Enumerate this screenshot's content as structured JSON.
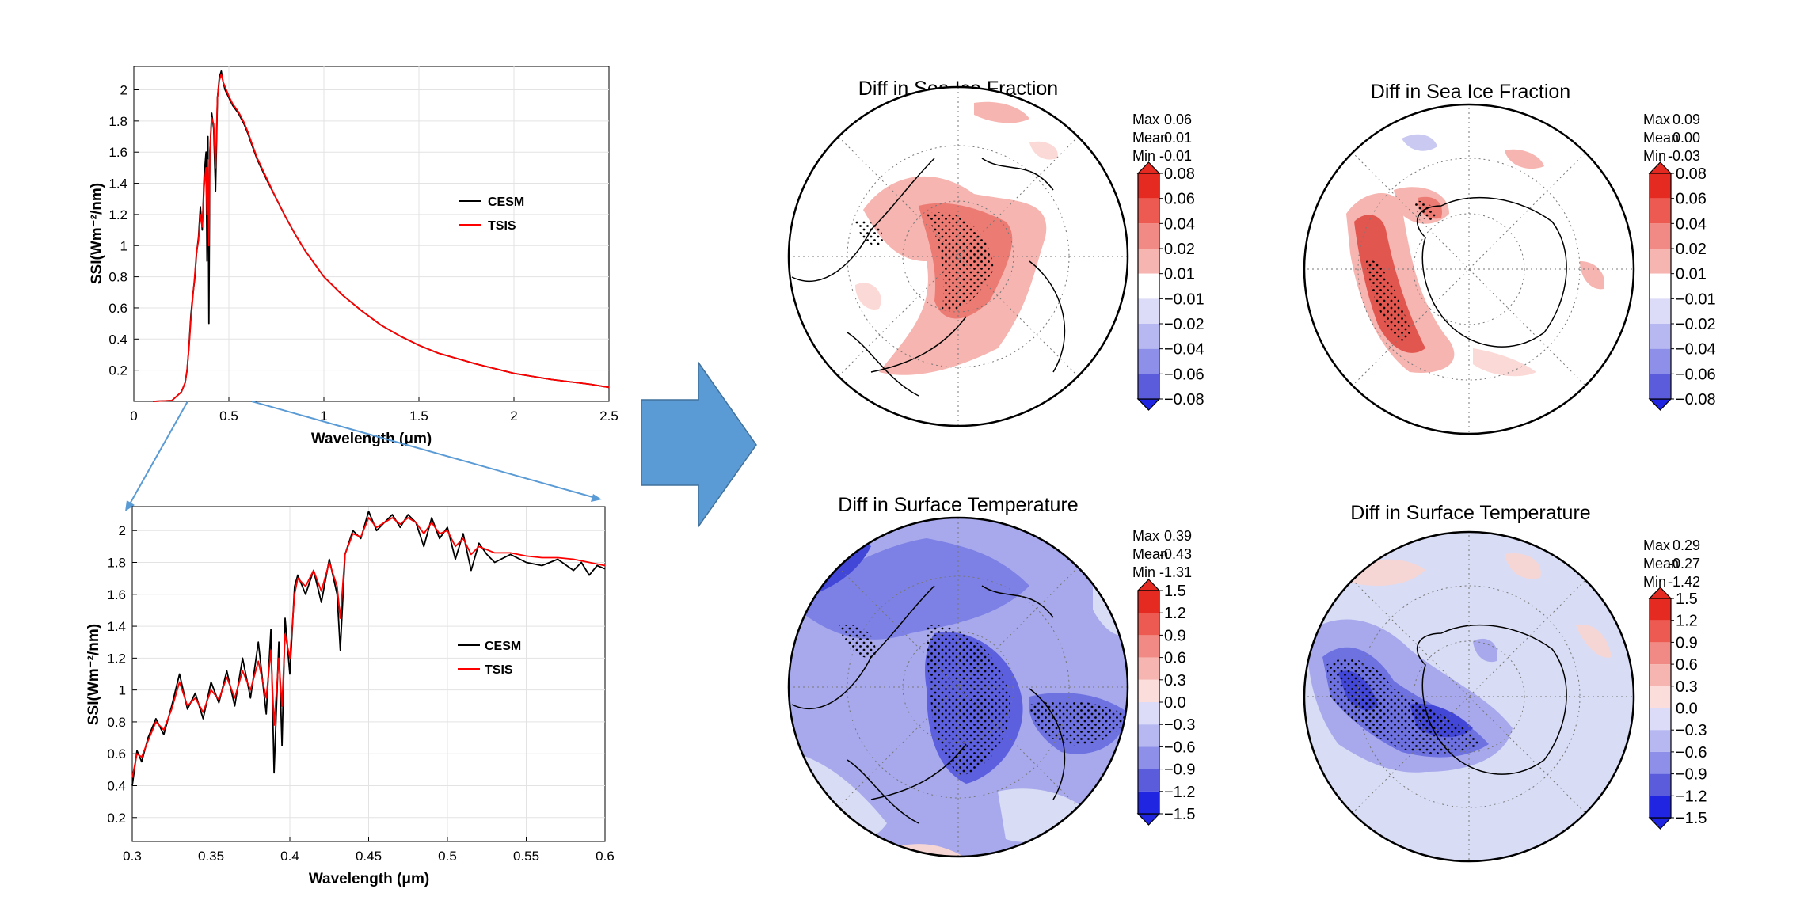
{
  "colors": {
    "cesm": "#000000",
    "tsis": "#ff0000",
    "arrow": "#5b9bd5",
    "zoom_lines": "#5b9bd5"
  },
  "chart_data": [
    {
      "id": "ssi-full",
      "type": "line",
      "xlabel": "Wavelength (μm)",
      "ylabel": "SSI(Wm⁻²/nm)",
      "xlim": [
        0,
        2.5
      ],
      "ylim": [
        0,
        2.15
      ],
      "xticks": [
        0,
        0.5,
        1,
        1.5,
        2,
        2.5
      ],
      "xtick_labels": [
        "0",
        "0.5",
        "1",
        "1.5",
        "2",
        "2.5"
      ],
      "yticks": [
        0.2,
        0.4,
        0.6,
        0.8,
        1,
        1.2,
        1.4,
        1.6,
        1.8,
        2
      ],
      "ytick_labels": [
        "0.2",
        "0.4",
        "0.6",
        "0.8",
        "1",
        "1.2",
        "1.4",
        "1.6",
        "1.8",
        "2"
      ],
      "grid": true,
      "legend": "center-right",
      "series": [
        {
          "name": "CESM",
          "color": "#000000",
          "x": [
            0.1,
            0.2,
            0.25,
            0.27,
            0.28,
            0.29,
            0.3,
            0.31,
            0.32,
            0.33,
            0.34,
            0.35,
            0.36,
            0.37,
            0.38,
            0.385,
            0.39,
            0.395,
            0.4,
            0.41,
            0.42,
            0.43,
            0.44,
            0.45,
            0.46,
            0.47,
            0.48,
            0.5,
            0.52,
            0.55,
            0.58,
            0.6,
            0.62,
            0.65,
            0.7,
            0.75,
            0.8,
            0.85,
            0.9,
            1.0,
            1.1,
            1.2,
            1.3,
            1.4,
            1.5,
            1.6,
            1.8,
            2.0,
            2.2,
            2.4,
            2.5
          ],
          "y": [
            0.0,
            0.005,
            0.06,
            0.12,
            0.2,
            0.35,
            0.55,
            0.68,
            0.78,
            0.95,
            1.05,
            1.25,
            1.1,
            1.45,
            1.6,
            0.9,
            1.7,
            0.5,
            1.6,
            1.85,
            1.75,
            1.35,
            1.95,
            2.08,
            2.12,
            2.05,
            2.0,
            1.95,
            1.9,
            1.85,
            1.78,
            1.72,
            1.65,
            1.55,
            1.42,
            1.3,
            1.18,
            1.07,
            0.97,
            0.8,
            0.68,
            0.58,
            0.49,
            0.42,
            0.36,
            0.31,
            0.24,
            0.18,
            0.14,
            0.11,
            0.09
          ]
        },
        {
          "name": "TSIS",
          "color": "#ff0000",
          "x": [
            0.1,
            0.2,
            0.25,
            0.27,
            0.28,
            0.29,
            0.3,
            0.31,
            0.32,
            0.33,
            0.34,
            0.35,
            0.36,
            0.37,
            0.38,
            0.385,
            0.39,
            0.395,
            0.4,
            0.41,
            0.42,
            0.43,
            0.44,
            0.45,
            0.46,
            0.47,
            0.48,
            0.5,
            0.52,
            0.55,
            0.58,
            0.6,
            0.62,
            0.65,
            0.7,
            0.75,
            0.8,
            0.85,
            0.9,
            1.0,
            1.1,
            1.2,
            1.3,
            1.4,
            1.5,
            1.6,
            1.8,
            2.0,
            2.2,
            2.4,
            2.5
          ],
          "y": [
            0.0,
            0.005,
            0.06,
            0.12,
            0.2,
            0.34,
            0.52,
            0.66,
            0.8,
            0.96,
            1.03,
            1.2,
            1.12,
            1.38,
            1.5,
            1.2,
            1.55,
            1.0,
            1.6,
            1.82,
            1.78,
            1.5,
            1.95,
            2.06,
            2.1,
            2.05,
            2.02,
            1.96,
            1.91,
            1.86,
            1.79,
            1.73,
            1.66,
            1.56,
            1.43,
            1.3,
            1.18,
            1.07,
            0.97,
            0.8,
            0.68,
            0.58,
            0.49,
            0.42,
            0.36,
            0.31,
            0.24,
            0.18,
            0.14,
            0.11,
            0.09
          ]
        }
      ]
    },
    {
      "id": "ssi-zoom",
      "type": "line",
      "xlabel": "Wavelength (μm)",
      "ylabel": "SSI(Wm⁻²/nm)",
      "xlim": [
        0.3,
        0.6
      ],
      "ylim": [
        0.05,
        2.15
      ],
      "xticks": [
        0.3,
        0.35,
        0.4,
        0.45,
        0.5,
        0.55,
        0.6
      ],
      "xtick_labels": [
        "0.3",
        "0.35",
        "0.4",
        "0.45",
        "0.5",
        "0.55",
        "0.6"
      ],
      "yticks": [
        0.2,
        0.4,
        0.6,
        0.8,
        1,
        1.2,
        1.4,
        1.6,
        1.8,
        2
      ],
      "ytick_labels": [
        "0.2",
        "0.4",
        "0.6",
        "0.8",
        "1",
        "1.2",
        "1.4",
        "1.6",
        "1.8",
        "2"
      ],
      "grid": true,
      "legend": "center-right",
      "series": [
        {
          "name": "CESM",
          "color": "#000000",
          "x": [
            0.3,
            0.303,
            0.306,
            0.31,
            0.315,
            0.32,
            0.325,
            0.33,
            0.335,
            0.34,
            0.345,
            0.35,
            0.355,
            0.36,
            0.365,
            0.37,
            0.375,
            0.38,
            0.385,
            0.388,
            0.39,
            0.393,
            0.395,
            0.397,
            0.4,
            0.403,
            0.405,
            0.41,
            0.415,
            0.42,
            0.425,
            0.43,
            0.432,
            0.435,
            0.44,
            0.445,
            0.45,
            0.455,
            0.46,
            0.465,
            0.47,
            0.475,
            0.48,
            0.485,
            0.49,
            0.495,
            0.5,
            0.505,
            0.51,
            0.515,
            0.52,
            0.525,
            0.53,
            0.54,
            0.55,
            0.56,
            0.57,
            0.58,
            0.585,
            0.59,
            0.595,
            0.6
          ],
          "y": [
            0.4,
            0.62,
            0.55,
            0.7,
            0.82,
            0.72,
            0.9,
            1.1,
            0.88,
            0.98,
            0.82,
            1.05,
            0.92,
            1.12,
            0.9,
            1.2,
            0.95,
            1.3,
            0.85,
            1.38,
            0.48,
            1.3,
            0.65,
            1.45,
            1.1,
            1.65,
            1.72,
            1.6,
            1.75,
            1.55,
            1.82,
            1.6,
            1.25,
            1.85,
            2.0,
            1.95,
            2.12,
            2.0,
            2.05,
            2.1,
            2.02,
            2.1,
            2.05,
            1.9,
            2.08,
            1.95,
            2.02,
            1.82,
            1.98,
            1.75,
            1.92,
            1.85,
            1.8,
            1.85,
            1.8,
            1.78,
            1.82,
            1.75,
            1.8,
            1.72,
            1.78,
            1.76
          ]
        },
        {
          "name": "TSIS",
          "color": "#ff0000",
          "x": [
            0.3,
            0.303,
            0.306,
            0.31,
            0.315,
            0.32,
            0.325,
            0.33,
            0.335,
            0.34,
            0.345,
            0.35,
            0.355,
            0.36,
            0.365,
            0.37,
            0.375,
            0.38,
            0.385,
            0.388,
            0.39,
            0.393,
            0.395,
            0.397,
            0.4,
            0.403,
            0.405,
            0.41,
            0.415,
            0.42,
            0.425,
            0.43,
            0.432,
            0.435,
            0.44,
            0.445,
            0.45,
            0.455,
            0.46,
            0.465,
            0.47,
            0.475,
            0.48,
            0.485,
            0.49,
            0.495,
            0.5,
            0.505,
            0.51,
            0.515,
            0.52,
            0.525,
            0.53,
            0.54,
            0.55,
            0.56,
            0.57,
            0.58,
            0.585,
            0.59,
            0.595,
            0.6
          ],
          "y": [
            0.45,
            0.6,
            0.58,
            0.68,
            0.8,
            0.75,
            0.88,
            1.05,
            0.9,
            0.95,
            0.86,
            1.0,
            0.94,
            1.08,
            0.95,
            1.12,
            1.0,
            1.18,
            0.95,
            1.25,
            0.78,
            1.2,
            0.9,
            1.35,
            1.2,
            1.6,
            1.7,
            1.65,
            1.75,
            1.62,
            1.8,
            1.65,
            1.45,
            1.85,
            1.98,
            1.96,
            2.08,
            2.02,
            2.05,
            2.08,
            2.04,
            2.08,
            2.05,
            1.98,
            2.05,
            1.98,
            2.0,
            1.9,
            1.95,
            1.85,
            1.9,
            1.88,
            1.86,
            1.86,
            1.84,
            1.83,
            1.83,
            1.82,
            1.81,
            1.8,
            1.79,
            1.78
          ]
        }
      ]
    },
    {
      "id": "map-nh-seaice",
      "type": "heatmap",
      "title": "Diff in Sea Ice Fraction",
      "stats": [
        [
          "Max",
          "0.06"
        ],
        [
          "Mean",
          "0.01"
        ],
        [
          "Min",
          "-0.01"
        ]
      ],
      "colorbar_labels": [
        "0.08",
        "0.06",
        "0.04",
        "0.02",
        "0.01",
        "−0.01",
        "−0.02",
        "−0.04",
        "−0.06",
        "−0.08"
      ]
    },
    {
      "id": "map-sh-seaice",
      "type": "heatmap",
      "title": "Diff in Sea Ice Fraction",
      "stats": [
        [
          "Max",
          "0.09"
        ],
        [
          "Mean",
          "0.00"
        ],
        [
          "Min",
          "-0.03"
        ]
      ],
      "colorbar_labels": [
        "0.08",
        "0.06",
        "0.04",
        "0.02",
        "0.01",
        "−0.01",
        "−0.02",
        "−0.04",
        "−0.06",
        "−0.08"
      ]
    },
    {
      "id": "map-nh-temp",
      "type": "heatmap",
      "title": "Diff in Surface Temperature",
      "stats": [
        [
          "Max",
          "0.39"
        ],
        [
          "Mean",
          "-0.43"
        ],
        [
          "Min",
          "-1.31"
        ]
      ],
      "colorbar_labels": [
        "1.5",
        "1.2",
        "0.9",
        "0.6",
        "0.3",
        "0.0",
        "−0.3",
        "−0.6",
        "−0.9",
        "−1.2",
        "−1.5"
      ]
    },
    {
      "id": "map-sh-temp",
      "type": "heatmap",
      "title": "Diff in Surface Temperature",
      "stats": [
        [
          "Max",
          "0.29"
        ],
        [
          "Mean",
          "-0.27"
        ],
        [
          "Min",
          "-1.42"
        ]
      ],
      "colorbar_labels": [
        "1.5",
        "1.2",
        "0.9",
        "0.6",
        "0.3",
        "0.0",
        "−0.3",
        "−0.6",
        "−0.9",
        "−1.2",
        "−1.5"
      ]
    }
  ]
}
